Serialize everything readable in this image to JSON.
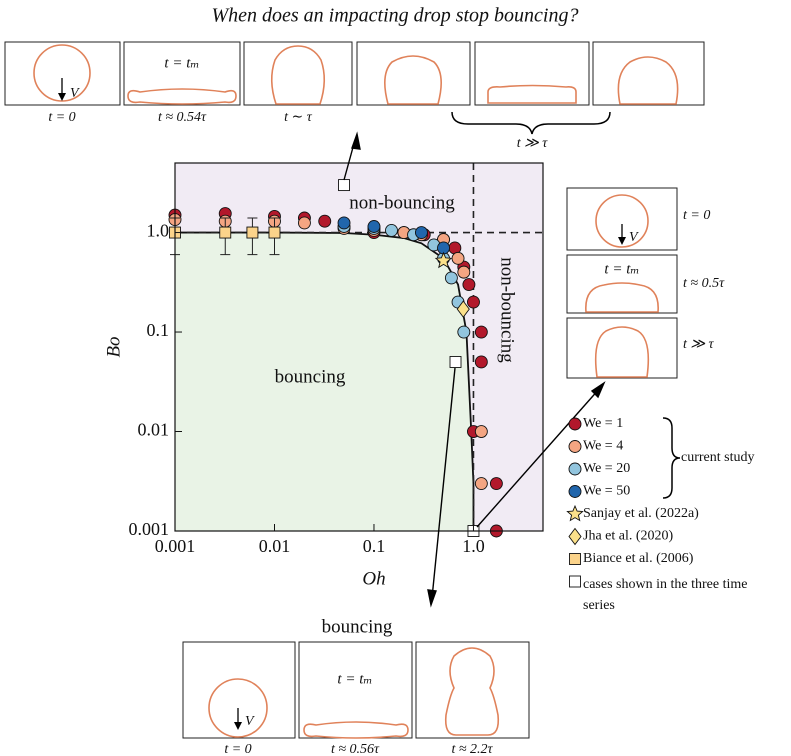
{
  "chart_data": {
    "type": "scatter",
    "title": "When does an impacting drop stop bouncing?",
    "x_label": "Oh",
    "y_label": "Bo",
    "xscale": "log",
    "yscale": "log",
    "xlim": [
      0.001,
      5
    ],
    "ylim": [
      0.001,
      5
    ],
    "xticks": [
      0.001,
      0.01,
      0.1,
      {
        "value": 1,
        "label": "1.0"
      }
    ],
    "yticks": [
      0.001,
      0.01,
      0.1,
      {
        "value": 1,
        "label": "1.0"
      }
    ],
    "ref_lines": {
      "x": 1,
      "y": 1
    },
    "region_colors": {
      "bouncing": "#e9f3e6",
      "non_bouncing": "#f1ebf4"
    },
    "boundary": {
      "x": [
        0.001,
        0.01,
        0.05,
        0.1,
        0.2,
        0.3,
        0.5,
        0.7,
        0.85,
        0.95,
        1.0,
        1.0
      ],
      "y": [
        1,
        1,
        0.99,
        0.95,
        0.88,
        0.78,
        0.55,
        0.3,
        0.1,
        0.01,
        0.003,
        0.001
      ]
    },
    "annotations": [
      "non-bouncing",
      "non-bouncing",
      "bouncing"
    ],
    "legend_group_label": "current study",
    "series": [
      {
        "name": "We = 1",
        "color": "#b2182b",
        "marker": "circle",
        "x": [
          0.001,
          0.0032,
          0.01,
          0.02,
          0.032,
          0.1,
          0.2,
          0.32,
          0.5,
          0.65,
          0.8,
          0.9,
          1.0,
          1.2,
          1.2,
          1.0,
          1.7,
          1.7
        ],
        "values": [
          1.5,
          1.55,
          1.45,
          1.4,
          1.3,
          1.0,
          1.0,
          0.95,
          0.85,
          0.7,
          0.45,
          0.3,
          0.2,
          0.1,
          0.05,
          0.01,
          0.003,
          0.001
        ]
      },
      {
        "name": "We = 4",
        "color": "#f4a582",
        "marker": "circle",
        "x": [
          0.001,
          0.0032,
          0.01,
          0.02,
          0.05,
          0.1,
          0.2,
          0.3,
          0.5,
          0.7,
          0.8,
          1.2,
          1.2
        ],
        "values": [
          1.35,
          1.3,
          1.3,
          1.25,
          1.1,
          1.05,
          1.0,
          0.95,
          0.85,
          0.55,
          0.4,
          0.01,
          0.003
        ]
      },
      {
        "name": "We = 20",
        "color": "#92c5de",
        "marker": "circle",
        "x": [
          0.05,
          0.1,
          0.15,
          0.25,
          0.4,
          0.5,
          0.6,
          0.7,
          0.8
        ],
        "values": [
          1.15,
          1.1,
          1.05,
          0.95,
          0.75,
          0.55,
          0.35,
          0.2,
          0.1
        ]
      },
      {
        "name": "We = 50",
        "color": "#2166ac",
        "marker": "circle",
        "x": [
          0.05,
          0.1,
          0.3,
          0.5
        ],
        "values": [
          1.25,
          1.15,
          1.0,
          0.7
        ]
      },
      {
        "name": "Sanjay et al. (2022a)",
        "color": "#fbe08a",
        "marker": "star",
        "x": [
          0.5
        ],
        "values": [
          0.52
        ]
      },
      {
        "name": "Jha et al. (2020)",
        "color": "#fbe08a",
        "marker": "diamond",
        "x": [
          0.79
        ],
        "values": [
          0.17
        ]
      },
      {
        "name": "Biance et al. (2006)",
        "color": "#fbd38a",
        "marker": "square",
        "x": [
          0.001,
          0.0032,
          0.006,
          0.01
        ],
        "values": [
          1,
          1,
          1,
          1
        ],
        "errors": [
          0.4,
          0.4,
          0.4,
          0.4
        ]
      },
      {
        "name": "cases shown in the three time series",
        "color": "#ffffff",
        "marker": "square",
        "x": [
          0.05,
          0.66,
          1.0
        ],
        "values": [
          3,
          0.05,
          0.001
        ]
      }
    ]
  },
  "time_series": [
    {
      "labels": [
        "t = 0",
        "t = tₘ",
        "t ≈ 0.54τ",
        "t ∼ τ",
        "t ≫ τ"
      ],
      "arrow_label": "V"
    },
    {
      "labels": [
        "t = 0",
        "t = tₘ",
        "t ≈ 0.5τ",
        "t ≫ τ"
      ],
      "arrow_label": "V"
    },
    {
      "title": "bouncing",
      "labels": [
        "t = 0",
        "t = tₘ",
        "t ≈ 0.56τ",
        "t ≈ 2.2τ"
      ],
      "arrow_label": "V"
    }
  ]
}
